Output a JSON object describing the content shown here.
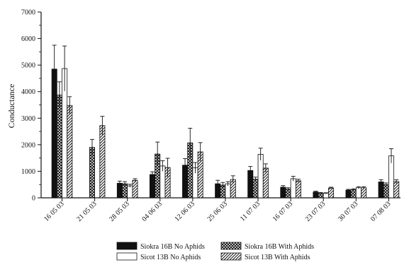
{
  "chart_data": {
    "type": "bar",
    "title": "",
    "xlabel": "",
    "ylabel": "Conductance",
    "ylim": [
      0,
      7000
    ],
    "yticks": [
      0,
      1000,
      2000,
      3000,
      4000,
      5000,
      6000,
      7000
    ],
    "grid": false,
    "legend_position": "bottom",
    "categories": [
      "16 05 03",
      "21 05 03",
      "28 05 03",
      "04 06 03",
      "12 06 03",
      "25 06 03",
      "11 07 03",
      "16 07 03",
      "23 07 03",
      "30 07 03",
      "07 08 03"
    ],
    "series": [
      {
        "name": "Siokra 16B No Aphids",
        "pattern": "solid-black",
        "values": [
          4850,
          null,
          550,
          880,
          1230,
          530,
          1030,
          400,
          220,
          290,
          600
        ],
        "errors": [
          900,
          null,
          80,
          100,
          250,
          130,
          150,
          60,
          30,
          30,
          80
        ]
      },
      {
        "name": "Siokra 16B With Aphids",
        "pattern": "crosshatch",
        "values": [
          3870,
          1900,
          530,
          1650,
          2070,
          480,
          700,
          330,
          170,
          310,
          500
        ],
        "errors": [
          500,
          300,
          80,
          450,
          550,
          100,
          80,
          50,
          30,
          30,
          60
        ]
      },
      {
        "name": "Sicot 13B No Aphids",
        "pattern": "white",
        "values": [
          4870,
          null,
          450,
          1200,
          1130,
          530,
          1640,
          720,
          170,
          380,
          1580
        ],
        "errors": [
          850,
          null,
          60,
          200,
          200,
          80,
          230,
          90,
          20,
          40,
          270
        ]
      },
      {
        "name": "Sicot 13B With Aphids",
        "pattern": "diagonal",
        "values": [
          3480,
          2720,
          660,
          1140,
          1730,
          690,
          1120,
          640,
          370,
          380,
          610
        ],
        "errors": [
          330,
          350,
          60,
          350,
          350,
          140,
          160,
          60,
          30,
          40,
          70
        ]
      }
    ],
    "colors": {
      "solid": "#111111",
      "stroke": "#111111",
      "fill_white": "#ffffff"
    }
  }
}
